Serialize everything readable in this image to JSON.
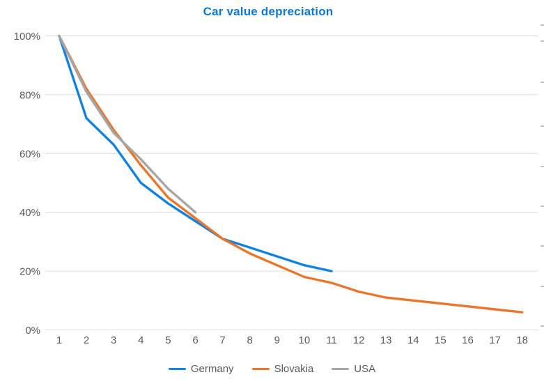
{
  "chart_data": {
    "type": "line",
    "title": "Car value depreciation",
    "x": [
      1,
      2,
      3,
      4,
      5,
      6,
      7,
      8,
      9,
      10,
      11,
      12,
      13,
      14,
      15,
      16,
      17,
      18
    ],
    "x_tick_labels": [
      "1",
      "2",
      "3",
      "4",
      "5",
      "6",
      "7",
      "8",
      "9",
      "10",
      "11",
      "12",
      "13",
      "14",
      "15",
      "16",
      "17",
      "18"
    ],
    "series": [
      {
        "name": "Germany",
        "color": "#1182e0",
        "x_start": 1,
        "values": [
          100,
          72,
          63,
          50,
          43,
          37,
          31,
          28,
          25,
          22,
          20
        ]
      },
      {
        "name": "Slovakia",
        "color": "#e8762d",
        "x_start": 1,
        "values": [
          100,
          82,
          68,
          56,
          45,
          38,
          31,
          26,
          22,
          18,
          16,
          13,
          11,
          10,
          9,
          8,
          7,
          6
        ]
      },
      {
        "name": "USA",
        "color": "#a6a6a6",
        "x_start": 1,
        "values": [
          100,
          81,
          67,
          58,
          48,
          40
        ]
      }
    ],
    "xlabel": "",
    "ylabel": "",
    "ylim": [
      0,
      100
    ],
    "yticks": [
      {
        "value": 0,
        "label": "0%"
      },
      {
        "value": 20,
        "label": "20%"
      },
      {
        "value": 40,
        "label": "40%"
      },
      {
        "value": 60,
        "label": "60%"
      },
      {
        "value": 80,
        "label": "80%"
      },
      {
        "value": 100,
        "label": "100%"
      }
    ],
    "grid": "horizontal",
    "legend_position": "bottom"
  },
  "style": {
    "title_color": "#0b77d9",
    "axis_text_color": "#595959",
    "gridline_color": "#d9d9d9",
    "background": "#ffffff",
    "edge_artifact_color": "#c2c2c2",
    "edge_artifact_y": [
      35,
      58,
      117,
      180,
      238,
      295,
      352,
      410,
      467
    ]
  }
}
